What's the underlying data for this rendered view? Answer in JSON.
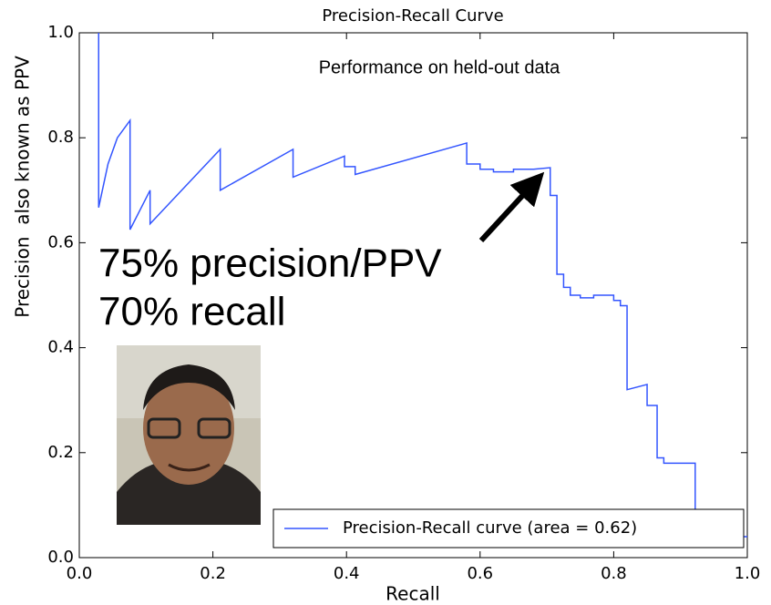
{
  "chart_data": {
    "type": "line",
    "title": "Precision-Recall Curve",
    "x_label": "Recall",
    "y_label": "Precision  also known as PPV",
    "annotations": [
      "Performance on held-out data",
      "75% precision/PPV",
      "70% recall"
    ],
    "xlim": [
      0,
      1
    ],
    "ylim": [
      0,
      1
    ],
    "xticks": [
      {
        "value": 0,
        "label": "0.0"
      },
      0.2,
      0.4,
      0.6,
      0.8,
      {
        "value": 1,
        "label": "1.0"
      }
    ],
    "yticks": [
      {
        "value": 0,
        "label": "0.0"
      },
      0.2,
      0.4,
      0.6,
      0.8,
      {
        "value": 1,
        "label": "1.0"
      }
    ],
    "legend": "lower right",
    "series": [
      {
        "name": "Precision-Recall curve (area = 0.62)",
        "color": "#3355ff",
        "x": [
          0.029,
          0.029,
          0.043,
          0.057,
          0.076,
          0.076,
          0.106,
          0.106,
          0.211,
          0.211,
          0.32,
          0.32,
          0.397,
          0.397,
          0.413,
          0.413,
          0.58,
          0.58,
          0.6,
          0.6,
          0.62,
          0.62,
          0.65,
          0.65,
          0.68,
          0.705,
          0.705,
          0.715,
          0.715,
          0.725,
          0.725,
          0.735,
          0.735,
          0.75,
          0.75,
          0.77,
          0.77,
          0.8,
          0.8,
          0.81,
          0.81,
          0.82,
          0.82,
          0.85,
          0.85,
          0.865,
          0.865,
          0.875,
          0.875,
          0.922,
          0.922,
          1.0
        ],
        "values": [
          1.0,
          0.667,
          0.75,
          0.8,
          0.833,
          0.625,
          0.7,
          0.636,
          0.778,
          0.7,
          0.778,
          0.725,
          0.765,
          0.745,
          0.745,
          0.73,
          0.79,
          0.75,
          0.75,
          0.74,
          0.74,
          0.735,
          0.735,
          0.74,
          0.74,
          0.743,
          0.69,
          0.69,
          0.54,
          0.54,
          0.515,
          0.515,
          0.5,
          0.5,
          0.495,
          0.495,
          0.5,
          0.5,
          0.49,
          0.49,
          0.48,
          0.48,
          0.32,
          0.33,
          0.29,
          0.29,
          0.19,
          0.19,
          0.18,
          0.18,
          0.04,
          0.04
        ]
      }
    ]
  }
}
